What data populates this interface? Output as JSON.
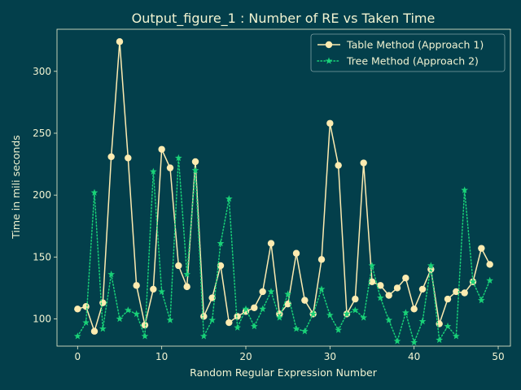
{
  "chart_data": {
    "type": "line",
    "title": "Output_figure_1 : Number of RE vs Taken Time",
    "xlabel": "Random Regular Expression Number",
    "ylabel": "Time in mili seconds",
    "xlim": [
      -2.45,
      51.45
    ],
    "ylim": [
      78,
      334
    ],
    "x_ticks": [
      0,
      10,
      20,
      30,
      40,
      50
    ],
    "y_ticks": [
      100,
      150,
      200,
      250,
      300
    ],
    "grid": false,
    "legend_position": "top-right",
    "x": [
      0,
      1,
      2,
      3,
      4,
      5,
      6,
      7,
      8,
      9,
      10,
      11,
      12,
      13,
      14,
      15,
      16,
      17,
      18,
      19,
      20,
      21,
      22,
      23,
      24,
      25,
      26,
      27,
      28,
      29,
      30,
      31,
      32,
      33,
      34,
      35,
      36,
      37,
      38,
      39,
      40,
      41,
      42,
      43,
      44,
      45,
      46,
      47,
      48,
      49
    ],
    "series": [
      {
        "name": "Table Method (Approach 1)",
        "color": "#fdebb0",
        "line_style": "solid",
        "marker": "circle",
        "values": [
          108,
          110,
          90,
          113,
          231,
          324,
          230,
          127,
          95,
          124,
          237,
          222,
          143,
          126,
          227,
          102,
          117,
          143,
          97,
          102,
          106,
          109,
          122,
          161,
          104,
          112,
          153,
          115,
          104,
          148,
          258,
          224,
          104,
          116,
          226,
          130,
          127,
          119,
          125,
          133,
          108,
          124,
          140,
          96,
          116,
          122,
          121,
          130,
          157,
          144
        ]
      },
      {
        "name": "Tree Method (Approach 2)",
        "color": "#19d178",
        "line_style": "dotted",
        "marker": "star",
        "values": [
          86,
          97,
          202,
          92,
          136,
          100,
          107,
          104,
          86,
          219,
          122,
          99,
          230,
          136,
          220,
          86,
          99,
          161,
          197,
          93,
          108,
          94,
          108,
          122,
          101,
          120,
          92,
          90,
          104,
          124,
          103,
          91,
          104,
          107,
          101,
          143,
          117,
          99,
          82,
          105,
          81,
          98,
          143,
          83,
          94,
          86,
          204,
          130,
          115,
          131
        ]
      }
    ]
  }
}
